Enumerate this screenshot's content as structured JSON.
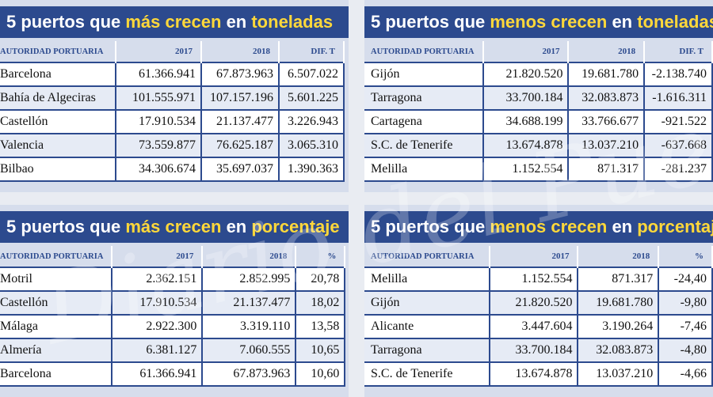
{
  "panels": [
    {
      "title": {
        "pre": "5 puertos que ",
        "hl1": "más crecen",
        "mid": " en ",
        "hl2": "toneladas"
      },
      "headers": [
        "AUTORIDAD PORTUARIA",
        "2017",
        "2018",
        "DIF. T"
      ],
      "rows": [
        [
          "Barcelona",
          "61.366.941",
          "67.873.963",
          "6.507.022"
        ],
        [
          "Bahía de Algeciras",
          "101.555.971",
          "107.157.196",
          "5.601.225"
        ],
        [
          "Castellón",
          "17.910.534",
          "21.137.477",
          "3.226.943"
        ],
        [
          "Valencia",
          "73.559.877",
          "76.625.187",
          "3.065.310"
        ],
        [
          "Bilbao",
          "34.306.674",
          "35.697.037",
          "1.390.363"
        ]
      ]
    },
    {
      "title": {
        "pre": "5 puertos que ",
        "hl1": "menos crecen",
        "mid": " en ",
        "hl2": "toneladas"
      },
      "headers": [
        "AUTORIDAD PORTUARIA",
        "2017",
        "2018",
        "DIF. T"
      ],
      "rows": [
        [
          "Gijón",
          "21.820.520",
          "19.681.780",
          "-2.138.740"
        ],
        [
          "Tarragona",
          "33.700.184",
          "32.083.873",
          "-1.616.311"
        ],
        [
          "Cartagena",
          "34.688.199",
          "33.766.677",
          "-921.522"
        ],
        [
          "S.C. de Tenerife",
          "13.674.878",
          "13.037.210",
          "-637.668"
        ],
        [
          "Melilla",
          "1.152.554",
          "871.317",
          "-281.237"
        ]
      ]
    },
    {
      "title": {
        "pre": "5 puertos que ",
        "hl1": "más crecen",
        "mid": " en ",
        "hl2": "porcentaje"
      },
      "headers": [
        "AUTORIDAD PORTUARIA",
        "2017",
        "2018",
        "%"
      ],
      "rows": [
        [
          "Motril",
          "2.362.151",
          "2.852.995",
          "20,78"
        ],
        [
          "Castellón",
          "17.910.534",
          "21.137.477",
          "18,02"
        ],
        [
          "Málaga",
          "2.922.300",
          "3.319.110",
          "13,58"
        ],
        [
          "Almería",
          "6.381.127",
          "7.060.555",
          "10,65"
        ],
        [
          "Barcelona",
          "61.366.941",
          "67.873.963",
          "10,60"
        ]
      ]
    },
    {
      "title": {
        "pre": "5 puertos que ",
        "hl1": "menos crecen",
        "mid": " en ",
        "hl2": "porcentaje"
      },
      "headers": [
        "AUTORIDAD PORTUARIA",
        "2017",
        "2018",
        "%"
      ],
      "rows": [
        [
          "Melilla",
          "1.152.554",
          "871.317",
          "-24,40"
        ],
        [
          "Gijón",
          "21.820.520",
          "19.681.780",
          "-9,80"
        ],
        [
          "Alicante",
          "3.447.604",
          "3.190.264",
          "-7,46"
        ],
        [
          "Tarragona",
          "33.700.184",
          "32.083.873",
          "-4,80"
        ],
        [
          "S.C. de Tenerife",
          "13.674.878",
          "13.037.210",
          "-4,66"
        ]
      ]
    }
  ],
  "watermark": "Diario del Puerto"
}
